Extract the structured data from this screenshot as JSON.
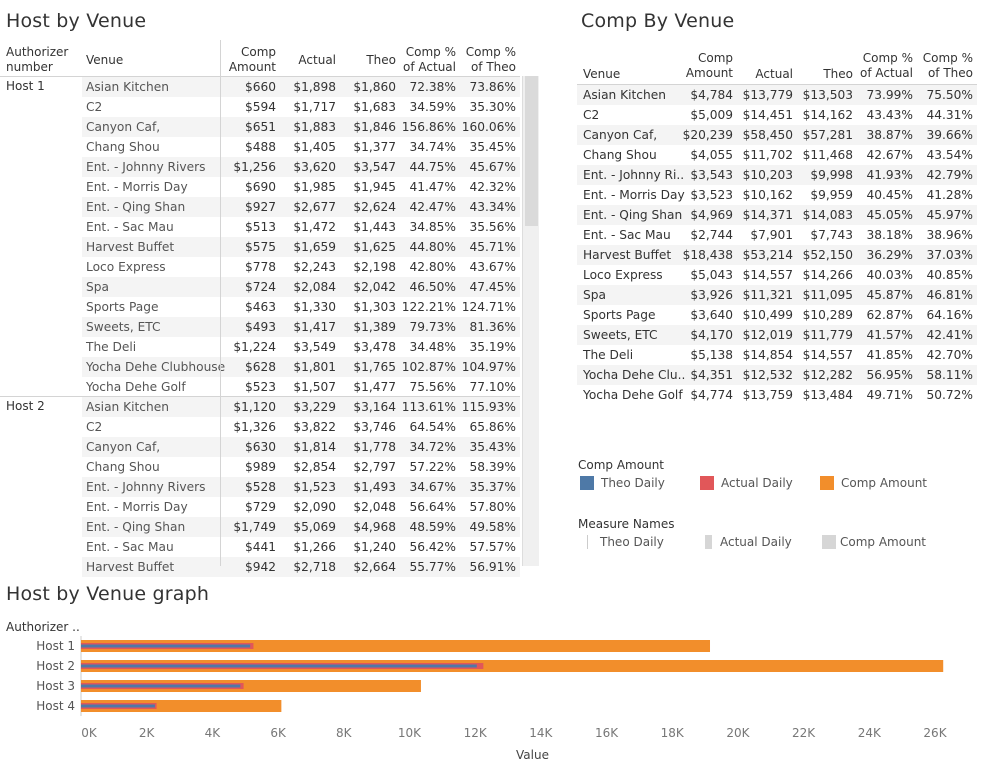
{
  "titles": {
    "host_by_venue": "Host by Venue",
    "comp_by_venue": "Comp By Venue",
    "graph": "Host by Venue graph"
  },
  "host_table": {
    "headers": {
      "authorizer": "Authorizer\nnumber",
      "venue": "Venue",
      "comp_amount": "Comp\nAmount",
      "actual": "Actual",
      "theo": "Theo",
      "comp_pct_actual": "Comp %\nof Actual",
      "comp_pct_theo": "Comp %\nof Theo"
    },
    "groups": [
      {
        "host": "Host 1",
        "rows": [
          [
            "Asian Kitchen",
            "$660",
            "$1,898",
            "$1,860",
            "72.38%",
            "73.86%"
          ],
          [
            "C2",
            "$594",
            "$1,717",
            "$1,683",
            "34.59%",
            "35.30%"
          ],
          [
            "Canyon Caf,",
            "$651",
            "$1,883",
            "$1,846",
            "156.86%",
            "160.06%"
          ],
          [
            "Chang Shou",
            "$488",
            "$1,405",
            "$1,377",
            "34.74%",
            "35.45%"
          ],
          [
            "Ent. - Johnny Rivers",
            "$1,256",
            "$3,620",
            "$3,547",
            "44.75%",
            "45.67%"
          ],
          [
            "Ent. - Morris Day",
            "$690",
            "$1,985",
            "$1,945",
            "41.47%",
            "42.32%"
          ],
          [
            "Ent. - Qing Shan",
            "$927",
            "$2,677",
            "$2,624",
            "42.47%",
            "43.34%"
          ],
          [
            "Ent. - Sac Mau",
            "$513",
            "$1,472",
            "$1,443",
            "34.85%",
            "35.56%"
          ],
          [
            "Harvest Buffet",
            "$575",
            "$1,659",
            "$1,625",
            "44.80%",
            "45.71%"
          ],
          [
            "Loco Express",
            "$778",
            "$2,243",
            "$2,198",
            "42.80%",
            "43.67%"
          ],
          [
            "Spa",
            "$724",
            "$2,084",
            "$2,042",
            "46.50%",
            "47.45%"
          ],
          [
            "Sports Page",
            "$463",
            "$1,330",
            "$1,303",
            "122.21%",
            "124.71%"
          ],
          [
            "Sweets, ETC",
            "$493",
            "$1,417",
            "$1,389",
            "79.73%",
            "81.36%"
          ],
          [
            "The Deli",
            "$1,224",
            "$3,549",
            "$3,478",
            "34.48%",
            "35.19%"
          ],
          [
            "Yocha Dehe Clubhouse",
            "$628",
            "$1,801",
            "$1,765",
            "102.87%",
            "104.97%"
          ],
          [
            "Yocha Dehe Golf",
            "$523",
            "$1,507",
            "$1,477",
            "75.56%",
            "77.10%"
          ]
        ]
      },
      {
        "host": "Host 2",
        "rows": [
          [
            "Asian Kitchen",
            "$1,120",
            "$3,229",
            "$3,164",
            "113.61%",
            "115.93%"
          ],
          [
            "C2",
            "$1,326",
            "$3,822",
            "$3,746",
            "64.54%",
            "65.86%"
          ],
          [
            "Canyon Caf,",
            "$630",
            "$1,814",
            "$1,778",
            "34.72%",
            "35.43%"
          ],
          [
            "Chang Shou",
            "$989",
            "$2,854",
            "$2,797",
            "57.22%",
            "58.39%"
          ],
          [
            "Ent. - Johnny Rivers",
            "$528",
            "$1,523",
            "$1,493",
            "34.67%",
            "35.37%"
          ],
          [
            "Ent. - Morris Day",
            "$729",
            "$2,090",
            "$2,048",
            "56.64%",
            "57.80%"
          ],
          [
            "Ent. - Qing Shan",
            "$1,749",
            "$5,069",
            "$4,968",
            "48.59%",
            "49.58%"
          ],
          [
            "Ent. - Sac Mau",
            "$441",
            "$1,266",
            "$1,240",
            "56.42%",
            "57.57%"
          ],
          [
            "Harvest Buffet",
            "$942",
            "$2,718",
            "$2,664",
            "55.77%",
            "56.91%"
          ]
        ]
      }
    ]
  },
  "comp_table": {
    "headers": {
      "venue": "Venue",
      "comp_amount": "Comp\nAmount",
      "actual": "Actual",
      "theo": "Theo",
      "comp_pct_actual": "Comp %\nof Actual",
      "comp_pct_theo": "Comp %\nof Theo"
    },
    "rows": [
      [
        "Asian Kitchen",
        "$4,784",
        "$13,779",
        "$13,503",
        "73.99%",
        "75.50%"
      ],
      [
        "C2",
        "$5,009",
        "$14,451",
        "$14,162",
        "43.43%",
        "44.31%"
      ],
      [
        "Canyon Caf,",
        "$20,239",
        "$58,450",
        "$57,281",
        "38.87%",
        "39.66%"
      ],
      [
        "Chang Shou",
        "$4,055",
        "$11,702",
        "$11,468",
        "42.67%",
        "43.54%"
      ],
      [
        "Ent. - Johnny Ri..",
        "$3,543",
        "$10,203",
        "$9,998",
        "41.93%",
        "42.79%"
      ],
      [
        "Ent. - Morris Day",
        "$3,523",
        "$10,162",
        "$9,959",
        "40.45%",
        "41.28%"
      ],
      [
        "Ent. - Qing Shan",
        "$4,969",
        "$14,371",
        "$14,083",
        "45.05%",
        "45.97%"
      ],
      [
        "Ent. - Sac Mau",
        "$2,744",
        "$7,901",
        "$7,743",
        "38.18%",
        "38.96%"
      ],
      [
        "Harvest Buffet",
        "$18,438",
        "$53,214",
        "$52,150",
        "36.29%",
        "37.03%"
      ],
      [
        "Loco Express",
        "$5,043",
        "$14,557",
        "$14,266",
        "40.03%",
        "40.85%"
      ],
      [
        "Spa",
        "$3,926",
        "$11,321",
        "$11,095",
        "45.87%",
        "46.81%"
      ],
      [
        "Sports Page",
        "$3,640",
        "$10,499",
        "$10,289",
        "62.87%",
        "64.16%"
      ],
      [
        "Sweets, ETC",
        "$4,170",
        "$12,019",
        "$11,779",
        "41.57%",
        "42.41%"
      ],
      [
        "The Deli",
        "$5,138",
        "$14,854",
        "$14,557",
        "41.85%",
        "42.70%"
      ],
      [
        "Yocha Dehe Clu..",
        "$4,351",
        "$12,532",
        "$12,282",
        "56.95%",
        "58.11%"
      ],
      [
        "Yocha Dehe Golf",
        "$4,774",
        "$13,759",
        "$13,484",
        "49.71%",
        "50.72%"
      ]
    ]
  },
  "legend_color": {
    "title": "Comp Amount",
    "items": [
      {
        "label": "Theo Daily",
        "color": "#4e79a7"
      },
      {
        "label": "Actual Daily",
        "color": "#e15759"
      },
      {
        "label": "Comp Amount",
        "color": "#f28e2b"
      }
    ]
  },
  "legend_measures": {
    "title": "Measure Names",
    "items": [
      {
        "label": "Theo Daily",
        "shape": "thin"
      },
      {
        "label": "Actual Daily",
        "shape": "medium"
      },
      {
        "label": "Comp Amount",
        "shape": "wide"
      }
    ]
  },
  "chart_data": {
    "type": "bar",
    "title": "Host by Venue graph",
    "row_header": "Authorizer ..",
    "xlabel": "Value",
    "categories": [
      "Host 1",
      "Host 2",
      "Host 3",
      "Host 4"
    ],
    "series": [
      {
        "name": "Comp Amount",
        "color": "#f28e2b",
        "values": [
          19150,
          26250,
          10350,
          6100
        ]
      },
      {
        "name": "Actual Daily",
        "color": "#e15759",
        "values": [
          5250,
          12250,
          4950,
          2300
        ]
      },
      {
        "name": "Theo Daily",
        "color": "#4e79a7",
        "values": [
          5150,
          12050,
          4850,
          2250
        ]
      }
    ],
    "xlim": [
      0,
      26000
    ],
    "xticks": [
      0,
      2000,
      4000,
      6000,
      8000,
      10000,
      12000,
      14000,
      16000,
      18000,
      20000,
      22000,
      24000,
      26000
    ],
    "xtick_labels": [
      "0K",
      "2K",
      "4K",
      "6K",
      "8K",
      "10K",
      "12K",
      "14K",
      "16K",
      "18K",
      "20K",
      "22K",
      "24K",
      "26K"
    ],
    "grid": false
  }
}
